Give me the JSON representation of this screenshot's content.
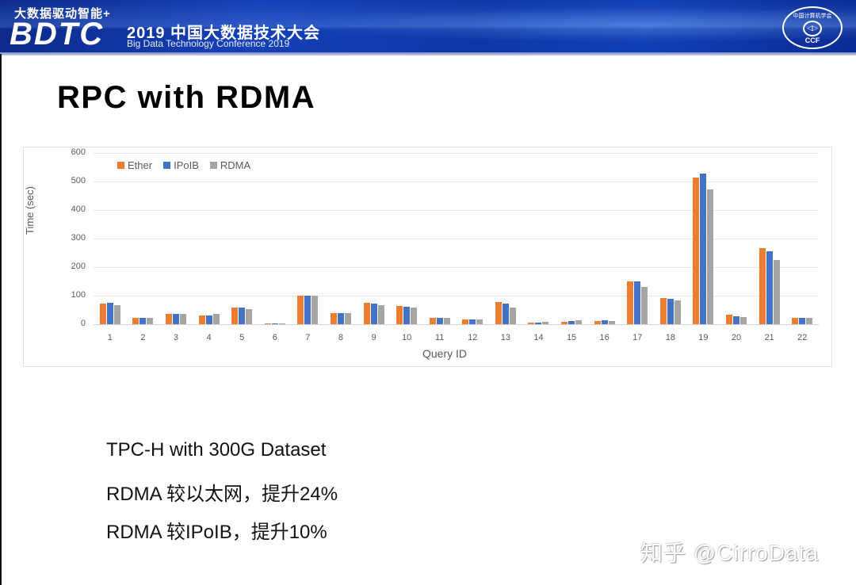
{
  "header": {
    "slogan": "大数据驱动智能+",
    "brand": "BDTC",
    "conference_cn": "2019 中国大数据技术大会",
    "conference_en": "Big Data Technology Conference 2019",
    "logo": {
      "top_text": "中国计算机学会",
      "mid_icon": "◁▷",
      "bottom_text": "CCF"
    },
    "colors": {
      "banner": "#1540b8"
    }
  },
  "slide": {
    "title": "RPC with RDMA",
    "notes": [
      "TPC-H with 300G Dataset",
      "RDMA 较以太网，提升24%",
      "RDMA 较IPoIB，提升10%"
    ]
  },
  "watermark": "知乎 @CirroData",
  "chart_data": {
    "type": "bar",
    "title": "",
    "xlabel": "Query ID",
    "ylabel": "Time (sec)",
    "ylim": [
      0,
      600
    ],
    "yticks": [
      0,
      100,
      200,
      300,
      400,
      500,
      600
    ],
    "grid": true,
    "legend_position": "top-left",
    "categories": [
      "1",
      "2",
      "3",
      "4",
      "5",
      "6",
      "7",
      "8",
      "9",
      "10",
      "11",
      "12",
      "13",
      "14",
      "15",
      "16",
      "17",
      "18",
      "19",
      "20",
      "21",
      "22"
    ],
    "series": [
      {
        "name": "Ether",
        "color": "#ed7d31",
        "values": [
          73,
          21,
          35,
          31,
          57,
          3,
          101,
          38,
          76,
          64,
          21,
          18,
          78,
          6,
          9,
          12,
          150,
          91,
          515,
          33,
          267,
          23
        ]
      },
      {
        "name": "IPoIB",
        "color": "#4472c4",
        "values": [
          75,
          21,
          36,
          31,
          57,
          3,
          99,
          38,
          73,
          61,
          21,
          18,
          73,
          6,
          10,
          15,
          150,
          89,
          527,
          28,
          255,
          23
        ]
      },
      {
        "name": "RDMA",
        "color": "#a5a5a5",
        "values": [
          68,
          21,
          36,
          36,
          52,
          3,
          99,
          40,
          67,
          57,
          21,
          16,
          59,
          8,
          13,
          12,
          131,
          83,
          472,
          25,
          226,
          23
        ]
      }
    ]
  }
}
